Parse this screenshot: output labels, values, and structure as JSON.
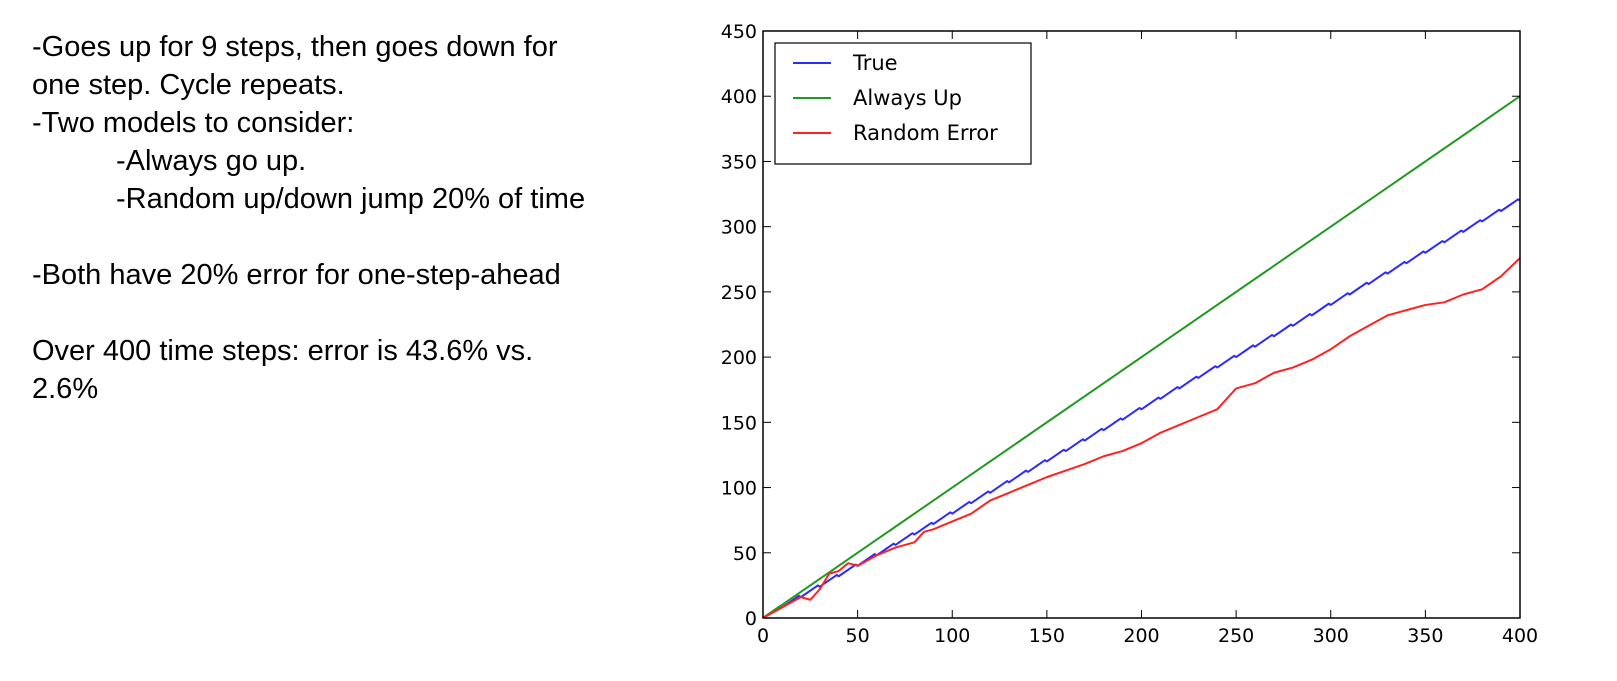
{
  "notes": {
    "line1": "-Goes up for 9 steps, then goes down for",
    "line2": "one step.  Cycle repeats.",
    "line3": "-Two models to consider:",
    "line4": "-Always go up.",
    "line5": "-Random up/down jump 20% of time",
    "line6": "-Both have 20% error for one-step-ahead",
    "line7": "Over 400 time steps: error is 43.6% vs.",
    "line8": "2.6%"
  },
  "colors": {
    "true_series": "#2b2bff",
    "always_up_series": "#1f9a1f",
    "random_error_series": "#ff2222"
  },
  "chart_data": {
    "type": "line",
    "title": "",
    "xlabel": "",
    "ylabel": "",
    "xlim": [
      0,
      400
    ],
    "ylim": [
      0,
      450
    ],
    "xticks": [
      0,
      50,
      100,
      150,
      200,
      250,
      300,
      350,
      400
    ],
    "yticks": [
      0,
      50,
      100,
      150,
      200,
      250,
      300,
      350,
      400,
      450
    ],
    "grid": false,
    "legend_position": "top-left",
    "series": [
      {
        "name": "True",
        "color": "#2b2bff",
        "x": [
          0,
          9,
          10,
          19,
          20,
          29,
          30,
          39,
          40,
          49,
          50,
          59,
          60,
          69,
          70,
          79,
          80,
          89,
          90,
          99,
          100,
          109,
          110,
          119,
          120,
          129,
          130,
          139,
          140,
          149,
          150,
          159,
          160,
          169,
          170,
          179,
          180,
          189,
          190,
          199,
          200,
          209,
          210,
          219,
          220,
          229,
          230,
          239,
          240,
          249,
          250,
          259,
          260,
          269,
          270,
          279,
          280,
          289,
          290,
          299,
          300,
          309,
          310,
          319,
          320,
          329,
          330,
          339,
          340,
          349,
          350,
          359,
          360,
          369,
          370,
          379,
          380,
          389,
          390,
          399,
          400
        ],
        "values": [
          0,
          9,
          8,
          17,
          16,
          25,
          24,
          33,
          32,
          41,
          40,
          49,
          48,
          57,
          56,
          65,
          64,
          73,
          72,
          81,
          80,
          89,
          88,
          97,
          96,
          105,
          104,
          113,
          112,
          121,
          120,
          129,
          128,
          137,
          136,
          145,
          144,
          153,
          152,
          161,
          160,
          169,
          168,
          177,
          176,
          185,
          184,
          193,
          192,
          201,
          200,
          209,
          208,
          217,
          216,
          225,
          224,
          233,
          232,
          241,
          240,
          249,
          248,
          257,
          256,
          265,
          264,
          273,
          272,
          281,
          280,
          289,
          288,
          297,
          296,
          305,
          304,
          313,
          312,
          321,
          320
        ]
      },
      {
        "name": "Always Up",
        "color": "#1f9a1f",
        "x": [
          0,
          400
        ],
        "values": [
          0,
          400
        ]
      },
      {
        "name": "Random Error",
        "color": "#ff2222",
        "x": [
          0,
          10,
          20,
          25,
          30,
          35,
          40,
          45,
          50,
          60,
          70,
          80,
          85,
          90,
          100,
          110,
          120,
          130,
          140,
          150,
          160,
          170,
          180,
          190,
          200,
          210,
          220,
          230,
          240,
          250,
          260,
          270,
          280,
          290,
          300,
          310,
          320,
          330,
          340,
          350,
          360,
          370,
          380,
          390,
          400
        ],
        "values": [
          0,
          8,
          16,
          14,
          22,
          34,
          36,
          42,
          40,
          48,
          54,
          58,
          66,
          68,
          74,
          80,
          90,
          96,
          102,
          108,
          113,
          118,
          124,
          128,
          134,
          142,
          148,
          154,
          160,
          176,
          180,
          188,
          192,
          198,
          206,
          216,
          224,
          232,
          236,
          240,
          242,
          248,
          252,
          262,
          276
        ]
      }
    ]
  }
}
